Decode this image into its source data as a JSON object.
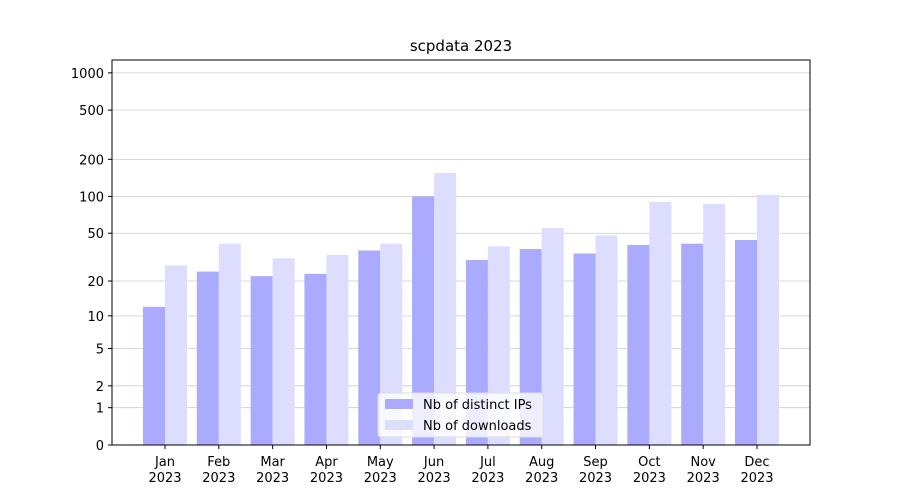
{
  "chart_data": {
    "type": "bar",
    "title": "scpdata 2023",
    "categories": [
      "Jan\n2023",
      "Feb\n2023",
      "Mar\n2023",
      "Apr\n2023",
      "May\n2023",
      "Jun\n2023",
      "Jul\n2023",
      "Aug\n2023",
      "Sep\n2023",
      "Oct\n2023",
      "Nov\n2023",
      "Dec\n2023"
    ],
    "series": [
      {
        "name": "Nb of distinct IPs",
        "color": "#aaaaff",
        "values": [
          12,
          24,
          22,
          23,
          36,
          100,
          30,
          37,
          34,
          40,
          41,
          44
        ]
      },
      {
        "name": "Nb of downloads",
        "color": "#ddddff",
        "values": [
          27,
          41,
          31,
          33,
          41,
          155,
          39,
          55,
          48,
          90,
          87,
          103
        ]
      }
    ],
    "yscale": "log1p",
    "ylim": [
      0,
      1270
    ],
    "yticks": [
      0,
      1,
      2,
      5,
      10,
      20,
      50,
      100,
      200,
      500,
      1000
    ],
    "grid": true,
    "legend": "lower center"
  }
}
